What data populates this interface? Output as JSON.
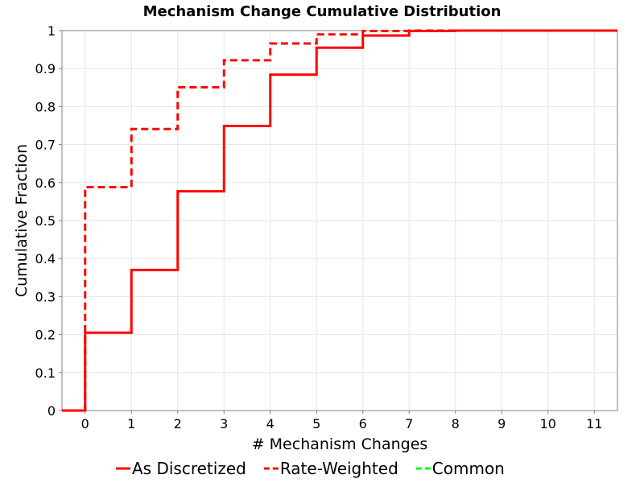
{
  "chart_data": {
    "type": "line",
    "step": true,
    "title": "Mechanism Change Cumulative Distribution",
    "xlabel": "# Mechanism Changes",
    "ylabel": "Cumulative Fraction",
    "xlim": [
      -0.5,
      11.5
    ],
    "ylim": [
      0,
      1
    ],
    "xticks": [
      0,
      1,
      2,
      3,
      4,
      5,
      6,
      7,
      8,
      9,
      10,
      11
    ],
    "xtick_labels": [
      "0",
      "1",
      "2",
      "3",
      "4",
      "5",
      "6",
      "7",
      "8",
      "9",
      "10",
      "11"
    ],
    "yticks": [
      0,
      0.1,
      0.2,
      0.3,
      0.4,
      0.5,
      0.6,
      0.7,
      0.8,
      0.9,
      1
    ],
    "ytick_labels": [
      "0",
      "0.1",
      "0.2",
      "0.3",
      "0.4",
      "0.5",
      "0.6",
      "0.7",
      "0.8",
      "0.9",
      "1"
    ],
    "grid": true,
    "legend_position": "bottom",
    "series": [
      {
        "name": "As Discretized",
        "color": "#ff0000",
        "dash": "solid",
        "x": [
          0,
          1,
          2,
          3,
          4,
          5,
          6,
          7,
          8,
          9,
          10,
          11
        ],
        "y": [
          0.205,
          0.37,
          0.577,
          0.749,
          0.884,
          0.955,
          0.987,
          0.999,
          1.0,
          1.0,
          1.0,
          1.0
        ]
      },
      {
        "name": "Rate-Weighted",
        "color": "#ff0000",
        "dash": "dashed",
        "x": [
          0,
          1,
          2,
          3,
          4,
          5,
          6,
          7,
          8,
          9,
          10,
          11
        ],
        "y": [
          0.588,
          0.741,
          0.851,
          0.922,
          0.966,
          0.99,
          0.999,
          1.0,
          1.0,
          1.0,
          1.0,
          1.0
        ]
      },
      {
        "name": "Common",
        "color": "#00ff00",
        "dash": "dashed",
        "x": [],
        "y": []
      }
    ]
  }
}
